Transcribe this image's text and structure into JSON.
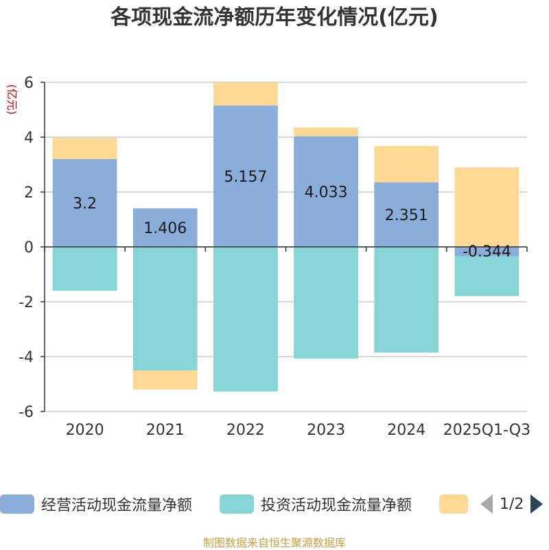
{
  "title": "各项现金流净额历年变化情况(亿元)",
  "source": "制图数据来自恒生聚源数据库",
  "legend_pager": "1/2",
  "chart_data": {
    "type": "bar",
    "stacked": true,
    "title": "各项现金流净额历年变化情况(亿元)",
    "ylabel": "(亿元)",
    "xlabel": "",
    "ylim": [
      -6,
      6
    ],
    "yticks": [
      "6",
      "4",
      "2",
      "0",
      "-2",
      "-4",
      "-6"
    ],
    "grid": true,
    "legend_position": "bottom",
    "categories": [
      "2020",
      "2021",
      "2022",
      "2023",
      "2024",
      "2025Q1-Q3"
    ],
    "series": [
      {
        "name": "经营活动现金流量净额",
        "color": "#8badd9",
        "values": [
          3.2,
          1.406,
          5.157,
          4.033,
          2.351,
          -0.344
        ],
        "labels": [
          "3.2",
          "1.406",
          "5.157",
          "4.033",
          "2.351",
          "-0.344"
        ]
      },
      {
        "name": "投资活动现金流量净额",
        "color": "#86d4d6",
        "values": [
          -1.6,
          -4.5,
          -5.27,
          -4.07,
          -3.85,
          -1.45
        ]
      },
      {
        "name": "",
        "color": "#fdd995",
        "values": [
          0.78,
          -0.7,
          0.83,
          0.32,
          1.33,
          2.9
        ]
      }
    ]
  }
}
